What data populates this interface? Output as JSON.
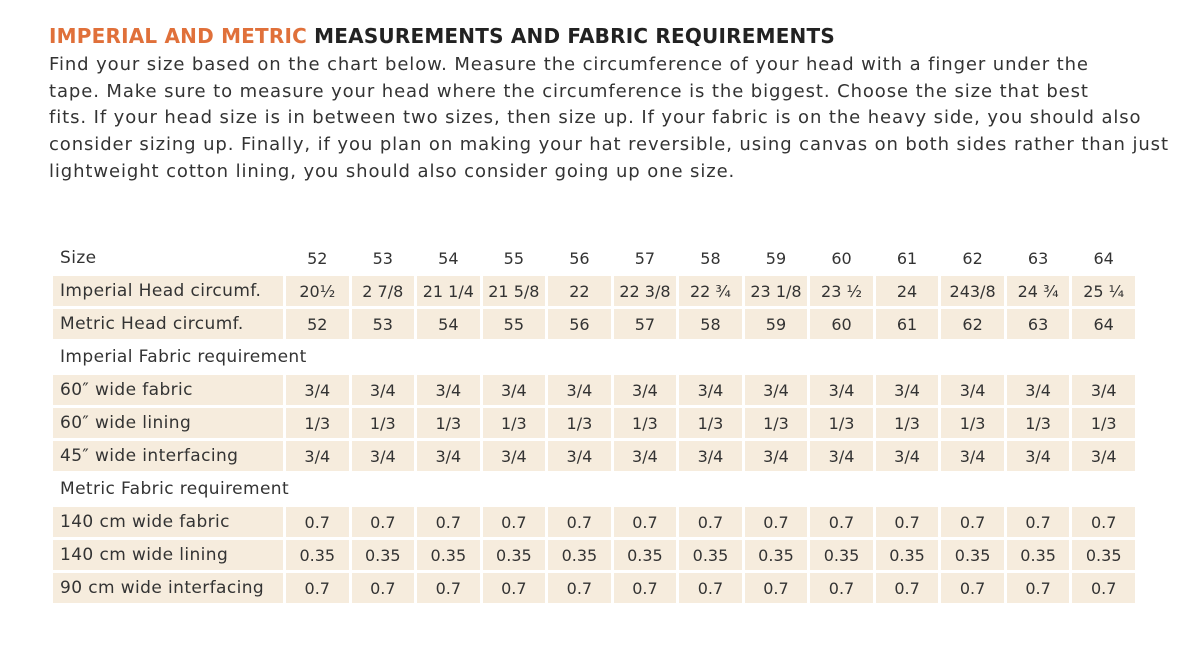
{
  "title": {
    "accent": "IMPERIAL AND METRIC",
    "rest": "MEASUREMENTS AND FABRIC REQUIREMENTS"
  },
  "intro": [
    "Find your size based on the chart below. Measure the circumference of your head with a finger under the",
    "tape. Make sure to measure your head where the circumference is the biggest.  Choose the size that best",
    "fits. If your head size is in between two sizes, then size up. If your fabric is on the heavy side, you should also",
    "consider sizing up. Finally, if you plan on making your hat reversible, using canvas on both sides rather than just",
    "lightweight cotton lining, you should also consider going up one size."
  ],
  "table": {
    "rows": [
      [
        "Size",
        "52",
        "53",
        "54",
        "55",
        "56",
        "57",
        "58",
        "59",
        "60",
        "61",
        "62",
        "63",
        "64"
      ],
      [
        "Imperial Head circumf.",
        "20½",
        "2 7/8",
        "21 1/4",
        "21 5/8",
        "22",
        "22 3/8",
        "22 ¾",
        "23 1/8",
        "23 ½",
        "24",
        "243/8",
        "24 ¾",
        "25 ¼"
      ],
      [
        "Metric Head circumf.",
        "52",
        "53",
        "54",
        "55",
        "56",
        "57",
        "58",
        "59",
        "60",
        "61",
        "62",
        "63",
        "64"
      ],
      [
        "Imperial Fabric requirement"
      ],
      [
        "60″  wide fabric",
        "3/4",
        "3/4",
        "3/4",
        "3/4",
        "3/4",
        "3/4",
        "3/4",
        "3/4",
        "3/4",
        "3/4",
        "3/4",
        "3/4",
        "3/4"
      ],
      [
        "60″  wide lining",
        "1/3",
        "1/3",
        "1/3",
        "1/3",
        "1/3",
        "1/3",
        "1/3",
        "1/3",
        "1/3",
        "1/3",
        "1/3",
        "1/3",
        "1/3"
      ],
      [
        "45″ wide interfacing",
        "3/4",
        "3/4",
        "3/4",
        "3/4",
        "3/4",
        "3/4",
        "3/4",
        "3/4",
        "3/4",
        "3/4",
        "3/4",
        "3/4",
        "3/4"
      ],
      [
        "Metric Fabric requirement"
      ],
      [
        "140 cm wide fabric",
        "0.7",
        "0.7",
        "0.7",
        "0.7",
        "0.7",
        "0.7",
        "0.7",
        "0.7",
        "0.7",
        "0.7",
        "0.7",
        "0.7",
        "0.7"
      ],
      [
        "140 cm wide lining",
        "0.35",
        "0.35",
        "0.35",
        "0.35",
        "0.35",
        "0.35",
        "0.35",
        "0.35",
        "0.35",
        "0.35",
        "0.35",
        "0.35",
        "0.35"
      ],
      [
        "90 cm wide interfacing",
        "0.7",
        "0.7",
        "0.7",
        "0.7",
        "0.7",
        "0.7",
        "0.7",
        "0.7",
        "0.7",
        "0.7",
        "0.7",
        "0.7",
        "0.7"
      ]
    ]
  }
}
